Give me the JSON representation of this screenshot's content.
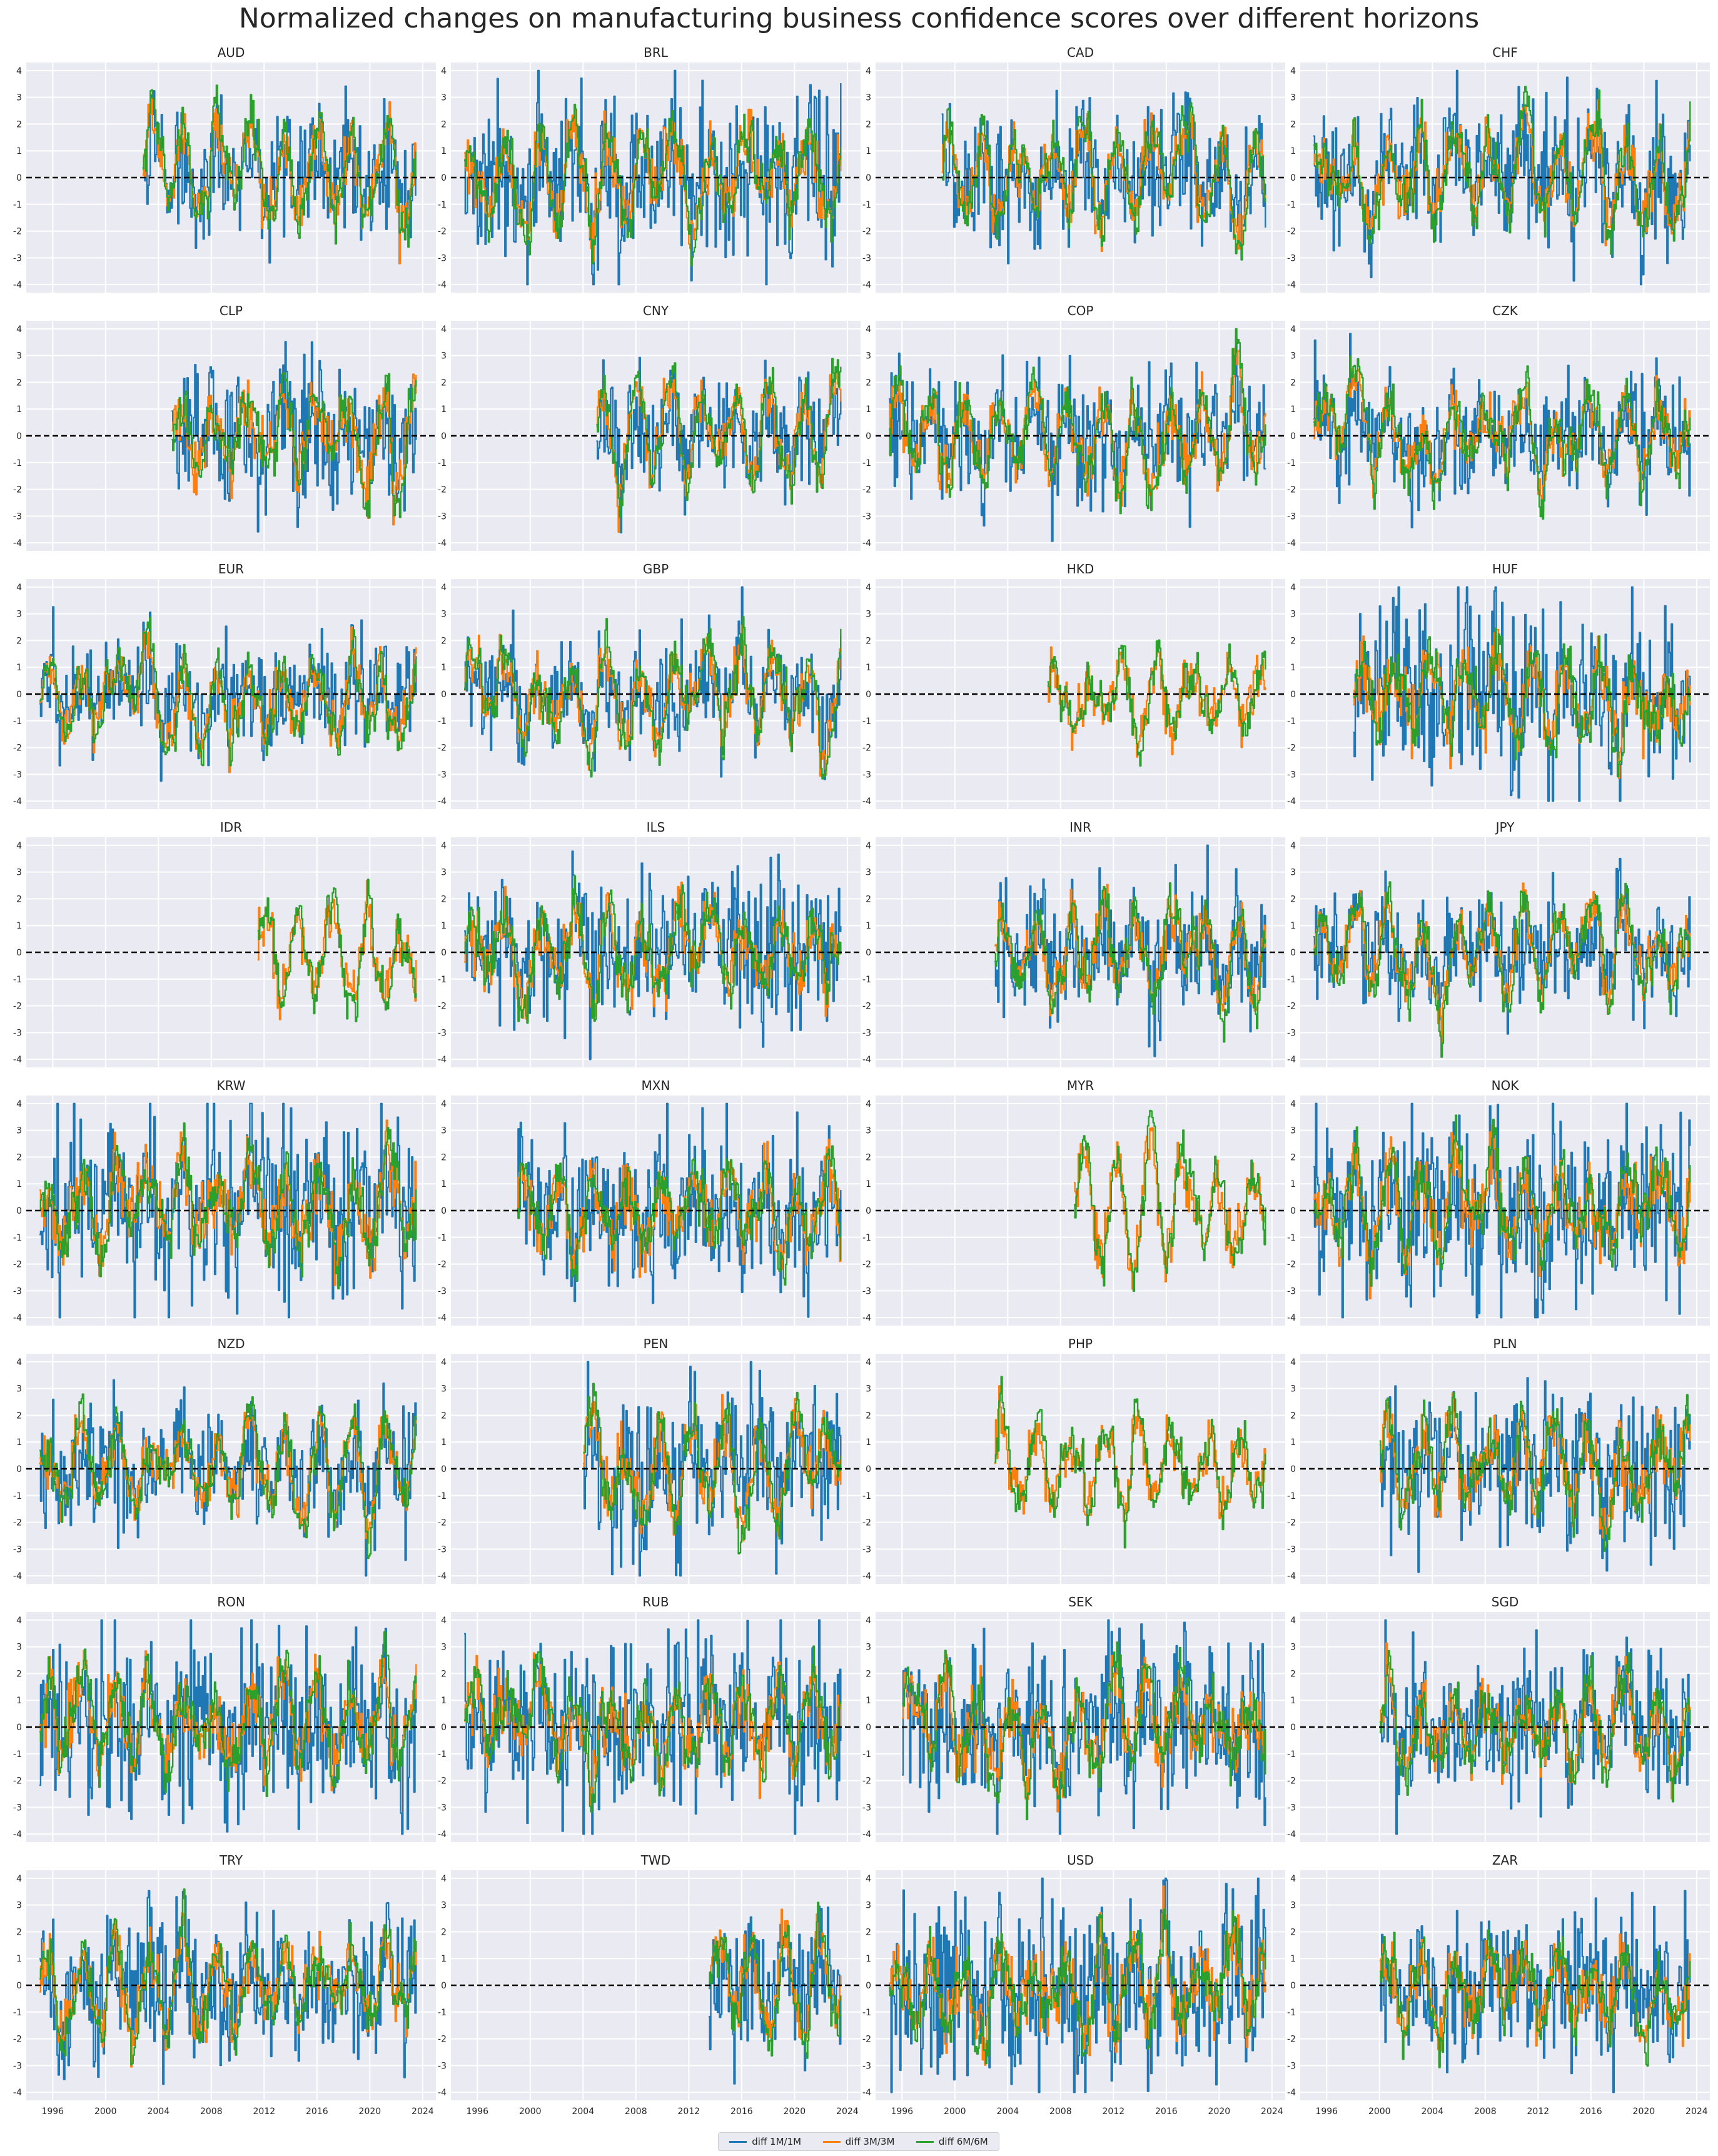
{
  "title": "Normalized changes on manufacturing business confidence scores over different horizons",
  "chart_data": {
    "type": "line",
    "title": "Normalized changes on manufacturing business confidence scores over different horizons",
    "layout": "facet grid, 8 rows x 4 columns, shared axes",
    "xlim": [
      1994,
      2025
    ],
    "ylim": [
      -4.3,
      4.3
    ],
    "x_ticks": [
      "1996",
      "2000",
      "2004",
      "2008",
      "2012",
      "2016",
      "2020",
      "2024"
    ],
    "y_ticks": [
      "4",
      "3",
      "2",
      "1",
      "0",
      "-1",
      "-2",
      "-3",
      "-4"
    ],
    "reference_line": {
      "y": 0,
      "style": "dashed",
      "color": "#000000"
    },
    "grid": true,
    "legend": {
      "position": "bottom-center",
      "entries": [
        "diff 1M/1M",
        "diff 3M/3M",
        "diff 6M/6M"
      ]
    },
    "series_colors": {
      "diff 1M/1M": "#1f77b4",
      "diff 3M/3M": "#ff7f0e",
      "diff 6M/6M": "#2ca02c"
    },
    "panels": [
      {
        "title": "AUD",
        "start": 2002.8,
        "end": 2023.6,
        "monthly_1m": true,
        "vol": 1.2,
        "seed": 1
      },
      {
        "title": "BRL",
        "start": 1995.0,
        "end": 2023.6,
        "monthly_1m": true,
        "vol": 1.5,
        "seed": 2
      },
      {
        "title": "CAD",
        "start": 1999.0,
        "end": 2023.6,
        "monthly_1m": true,
        "vol": 1.1,
        "seed": 3
      },
      {
        "title": "CHF",
        "start": 1995.0,
        "end": 2023.6,
        "monthly_1m": true,
        "vol": 1.2,
        "seed": 4
      },
      {
        "title": "CLP",
        "start": 2005.0,
        "end": 2023.6,
        "monthly_1m": true,
        "vol": 1.4,
        "seed": 5
      },
      {
        "title": "CNY",
        "start": 2005.0,
        "end": 2023.6,
        "monthly_1m": true,
        "vol": 1.0,
        "seed": 6
      },
      {
        "title": "COP",
        "start": 1995.0,
        "end": 2023.6,
        "monthly_1m": true,
        "vol": 1.2,
        "seed": 7
      },
      {
        "title": "CZK",
        "start": 1995.0,
        "end": 2023.6,
        "monthly_1m": true,
        "vol": 1.1,
        "seed": 8
      },
      {
        "title": "EUR",
        "start": 1995.0,
        "end": 2023.6,
        "monthly_1m": true,
        "vol": 1.0,
        "seed": 9
      },
      {
        "title": "GBP",
        "start": 1995.0,
        "end": 2023.6,
        "monthly_1m": true,
        "vol": 1.0,
        "seed": 10
      },
      {
        "title": "HKD",
        "start": 2007.0,
        "end": 2023.6,
        "monthly_1m": false,
        "vol": 1.2,
        "seed": 11
      },
      {
        "title": "HUF",
        "start": 1998.0,
        "end": 2023.6,
        "monthly_1m": true,
        "vol": 1.6,
        "seed": 12
      },
      {
        "title": "IDR",
        "start": 2011.5,
        "end": 2023.6,
        "monthly_1m": false,
        "vol": 1.2,
        "seed": 13
      },
      {
        "title": "ILS",
        "start": 1995.0,
        "end": 2023.6,
        "monthly_1m": true,
        "vol": 1.4,
        "seed": 14
      },
      {
        "title": "INR",
        "start": 2003.0,
        "end": 2023.6,
        "monthly_1m": true,
        "vol": 1.1,
        "seed": 15
      },
      {
        "title": "JPY",
        "start": 1995.0,
        "end": 2023.6,
        "monthly_1m": true,
        "vol": 1.0,
        "seed": 16
      },
      {
        "title": "KRW",
        "start": 1995.0,
        "end": 2023.6,
        "monthly_1m": true,
        "vol": 1.6,
        "seed": 17
      },
      {
        "title": "MXN",
        "start": 1999.0,
        "end": 2023.6,
        "monthly_1m": true,
        "vol": 1.4,
        "seed": 18
      },
      {
        "title": "MYR",
        "start": 2009.0,
        "end": 2023.6,
        "monthly_1m": false,
        "vol": 1.3,
        "seed": 19
      },
      {
        "title": "NOK",
        "start": 1995.0,
        "end": 2023.6,
        "monthly_1m": true,
        "vol": 1.6,
        "seed": 20
      },
      {
        "title": "NZD",
        "start": 1995.0,
        "end": 2023.6,
        "monthly_1m": true,
        "vol": 1.0,
        "seed": 21
      },
      {
        "title": "PEN",
        "start": 2004.0,
        "end": 2023.6,
        "monthly_1m": true,
        "vol": 1.5,
        "seed": 22
      },
      {
        "title": "PHP",
        "start": 2003.0,
        "end": 2023.6,
        "monthly_1m": false,
        "vol": 1.2,
        "seed": 23
      },
      {
        "title": "PLN",
        "start": 2000.0,
        "end": 2023.6,
        "monthly_1m": true,
        "vol": 1.4,
        "seed": 24
      },
      {
        "title": "RON",
        "start": 1995.0,
        "end": 2023.6,
        "monthly_1m": true,
        "vol": 1.5,
        "seed": 25
      },
      {
        "title": "RUB",
        "start": 1995.0,
        "end": 2023.6,
        "monthly_1m": true,
        "vol": 1.5,
        "seed": 26
      },
      {
        "title": "SEK",
        "start": 1996.0,
        "end": 2023.6,
        "monthly_1m": true,
        "vol": 1.6,
        "seed": 27
      },
      {
        "title": "SGD",
        "start": 2000.0,
        "end": 2023.6,
        "monthly_1m": true,
        "vol": 1.3,
        "seed": 28
      },
      {
        "title": "TRY",
        "start": 1995.0,
        "end": 2023.6,
        "monthly_1m": true,
        "vol": 1.3,
        "seed": 29
      },
      {
        "title": "TWD",
        "start": 2013.5,
        "end": 2023.6,
        "monthly_1m": true,
        "vol": 1.3,
        "seed": 30
      },
      {
        "title": "USD",
        "start": 1995.0,
        "end": 2023.6,
        "monthly_1m": true,
        "vol": 1.7,
        "seed": 31
      },
      {
        "title": "ZAR",
        "start": 2000.0,
        "end": 2023.6,
        "monthly_1m": true,
        "vol": 1.3,
        "seed": 32
      }
    ]
  }
}
